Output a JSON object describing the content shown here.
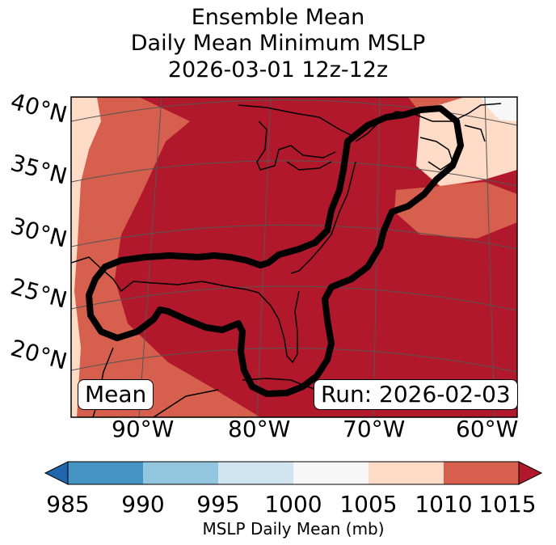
{
  "title": {
    "line1": "Ensemble Mean",
    "line2": "Daily Mean Minimum MSLP",
    "line3": "2026-03-01 12z-12z"
  },
  "map": {
    "latitude_labels": [
      "40°N",
      "35°N",
      "30°N",
      "25°N",
      "20°N"
    ],
    "longitude_labels": [
      "90°W",
      "80°W",
      "70°W",
      "60°W"
    ],
    "mean_badge": "Mean",
    "run_badge": "Run: 2026-02-03"
  },
  "colorbar": {
    "tick_labels": [
      "985",
      "990",
      "995",
      "1000",
      "1005",
      "1010",
      "1015"
    ],
    "label": "MSLP Daily Mean (mb)",
    "colors": [
      "#2166ac",
      "#4393c3",
      "#92c5de",
      "#d1e5f0",
      "#f7f7f7",
      "#fddbc7",
      "#d6604d",
      "#b2182b"
    ]
  }
}
